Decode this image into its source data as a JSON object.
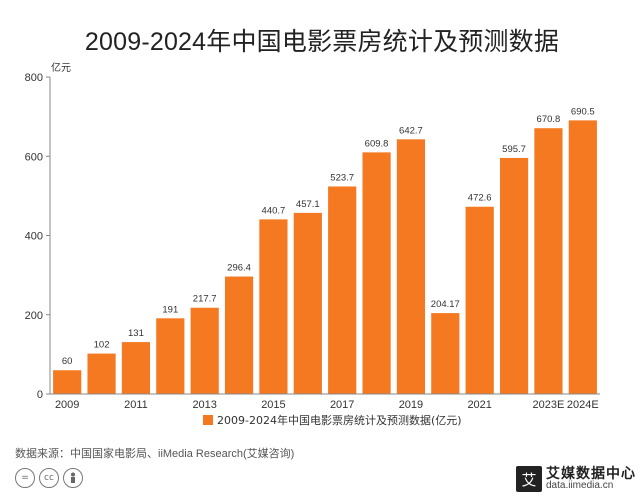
{
  "title": "2009-2024年中国电影票房统计及预测数据",
  "source": "数据来源：中国国家电影局、iiMedia Research(艾媒咨询)",
  "brand": {
    "name": "艾媒数据中心",
    "url": "data.iimedia.cn",
    "logo_char": "艾"
  },
  "license_icons": [
    "=",
    "cc",
    "person-icon"
  ],
  "colors": {
    "bar": "#F47920",
    "axis": "#888888",
    "text": "#333333"
  },
  "chart_data": {
    "type": "bar",
    "title": "2009-2024年中国电影票房统计及预测数据",
    "ylabel": "亿元",
    "ylim": [
      0,
      800
    ],
    "yticks": [
      0,
      200,
      400,
      600,
      800
    ],
    "grid": false,
    "legend_position": "bottom",
    "categories": [
      "2009",
      "2010",
      "2011",
      "2012",
      "2013",
      "2014",
      "2015",
      "2016",
      "2017",
      "2018",
      "2019",
      "2020",
      "2021",
      "2022",
      "2023E",
      "2024E"
    ],
    "x_tick_labels": [
      "2009",
      "",
      "2011",
      "",
      "2013",
      "",
      "2015",
      "",
      "2017",
      "",
      "2019",
      "",
      "2021",
      "",
      "2023E",
      "2024E"
    ],
    "series": [
      {
        "name": "2009-2024年中国电影票房统计及预测数据(亿元)",
        "values": [
          60,
          102,
          131,
          191,
          217.7,
          296.4,
          440.7,
          457.1,
          523.7,
          609.8,
          642.7,
          204.17,
          472.6,
          595.7,
          670.8,
          690.5
        ],
        "labels": [
          "60",
          "102",
          "131",
          "191",
          "217.7",
          "296.4",
          "440.7",
          "457.1",
          "523.7",
          "609.8",
          "642.7",
          "204.17",
          "472.6",
          "595.7",
          "670.8",
          "690.5"
        ]
      }
    ]
  }
}
